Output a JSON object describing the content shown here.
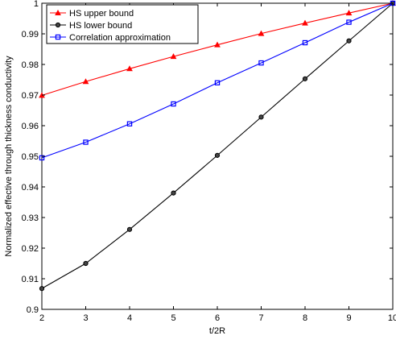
{
  "chart_data": {
    "type": "line",
    "title": "",
    "xlabel": "t/2R",
    "ylabel": "Normalized effective through thickness conductivity",
    "xlim": [
      2,
      10
    ],
    "ylim": [
      0.9,
      1.0
    ],
    "xticks": [
      "2",
      "3",
      "4",
      "5",
      "6",
      "7",
      "8",
      "9",
      "10"
    ],
    "yticks": [
      "0.9",
      "0.91",
      "0.92",
      "0.93",
      "0.94",
      "0.95",
      "0.96",
      "0.97",
      "0.98",
      "0.99",
      "1"
    ],
    "grid": false,
    "legend_position": "top-left",
    "x": [
      2,
      3,
      4,
      5,
      6,
      7,
      8,
      9,
      10
    ],
    "series": [
      {
        "name": "HS upper bound",
        "color": "#ff0000",
        "marker": "triangle",
        "values": [
          0.9699,
          0.9744,
          0.9786,
          0.9826,
          0.9864,
          0.9901,
          0.9935,
          0.9968,
          1.0
        ]
      },
      {
        "name": "HS lower bound",
        "color": "#000000",
        "marker": "circle",
        "values": [
          0.9068,
          0.915,
          0.9261,
          0.938,
          0.9503,
          0.9628,
          0.9753,
          0.9877,
          1.0
        ]
      },
      {
        "name": "Correlation approximation",
        "color": "#0000ff",
        "marker": "square",
        "values": [
          0.9495,
          0.9546,
          0.9606,
          0.9671,
          0.974,
          0.9805,
          0.9871,
          0.9938,
          1.0
        ]
      }
    ]
  }
}
